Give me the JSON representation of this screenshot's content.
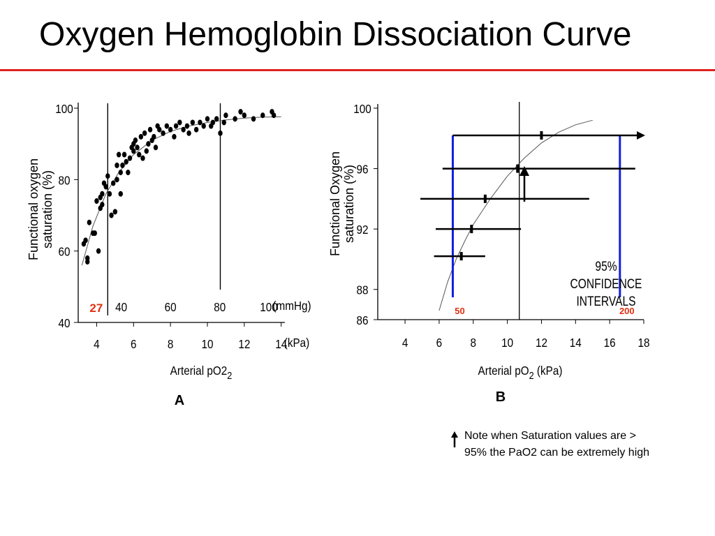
{
  "slide": {
    "title": "Oxygen Hemoglobin Dissociation Curve",
    "accent_color": "#e02020",
    "note": "Note when Saturation values are > 95% the PaO2 can be extremely high",
    "note_icon": "up-arrow-icon"
  },
  "chart_data": [
    {
      "panel_label": "A",
      "type": "scatter",
      "xlabel": "Arterial pO2",
      "xlabel_sub": "2",
      "ylabel": [
        "Functional oxygen",
        "saturation (%)"
      ],
      "x_unit": "(kPa)",
      "x2_unit": "(mmHg)",
      "xlim": [
        3,
        14.2
      ],
      "ylim": [
        40,
        100
      ],
      "x_ticks": [
        4,
        6,
        8,
        10,
        12,
        14
      ],
      "y_ticks": [
        40,
        60,
        80,
        100
      ],
      "x2_ticks": [
        {
          "label": "40",
          "x": 5.33
        },
        {
          "label": "60",
          "x": 8.0
        },
        {
          "label": "80",
          "x": 10.67
        },
        {
          "label": "100",
          "x": 13.33
        }
      ],
      "highlight_tick": {
        "label": "27",
        "x": 3.6,
        "color": "#e03010"
      },
      "vlines": [
        4.6,
        10.7
      ],
      "grid": false,
      "fit_curve": {
        "x": [
          3.2,
          3.8,
          4.5,
          5.2,
          6.0,
          7.0,
          8.0,
          9.0,
          10.0,
          11.0,
          12.0,
          13.0,
          14.0
        ],
        "y": [
          56,
          67,
          76,
          82,
          87,
          91,
          93.5,
          95,
          96,
          96.7,
          97.2,
          97.5,
          97.6
        ]
      },
      "points": [
        [
          3.3,
          62
        ],
        [
          3.4,
          63
        ],
        [
          3.5,
          57
        ],
        [
          3.5,
          58
        ],
        [
          3.6,
          68
        ],
        [
          3.8,
          65
        ],
        [
          3.9,
          65
        ],
        [
          4.0,
          74
        ],
        [
          4.1,
          60
        ],
        [
          4.2,
          75
        ],
        [
          4.2,
          72
        ],
        [
          4.3,
          73
        ],
        [
          4.3,
          76
        ],
        [
          4.4,
          79
        ],
        [
          4.5,
          78
        ],
        [
          4.6,
          81
        ],
        [
          4.7,
          76
        ],
        [
          4.8,
          70
        ],
        [
          4.9,
          79
        ],
        [
          5.0,
          71
        ],
        [
          5.1,
          80
        ],
        [
          5.1,
          84
        ],
        [
          5.2,
          87
        ],
        [
          5.3,
          82
        ],
        [
          5.3,
          76
        ],
        [
          5.4,
          84
        ],
        [
          5.5,
          87
        ],
        [
          5.6,
          85
        ],
        [
          5.7,
          82
        ],
        [
          5.8,
          86
        ],
        [
          5.9,
          89
        ],
        [
          6.0,
          90
        ],
        [
          6.0,
          88
        ],
        [
          6.1,
          91
        ],
        [
          6.2,
          89
        ],
        [
          6.3,
          87
        ],
        [
          6.4,
          92
        ],
        [
          6.5,
          86
        ],
        [
          6.6,
          93
        ],
        [
          6.7,
          88
        ],
        [
          6.8,
          90
        ],
        [
          6.9,
          94
        ],
        [
          7.0,
          91
        ],
        [
          7.1,
          92
        ],
        [
          7.2,
          89
        ],
        [
          7.3,
          95
        ],
        [
          7.4,
          94
        ],
        [
          7.6,
          93
        ],
        [
          7.8,
          95
        ],
        [
          8.0,
          94
        ],
        [
          8.2,
          92
        ],
        [
          8.3,
          95
        ],
        [
          8.5,
          96
        ],
        [
          8.7,
          94
        ],
        [
          8.9,
          95
        ],
        [
          9.0,
          93
        ],
        [
          9.2,
          96
        ],
        [
          9.4,
          94
        ],
        [
          9.6,
          96
        ],
        [
          9.8,
          95
        ],
        [
          10.0,
          97
        ],
        [
          10.2,
          95
        ],
        [
          10.3,
          96
        ],
        [
          10.5,
          97
        ],
        [
          10.7,
          93
        ],
        [
          10.9,
          96
        ],
        [
          11.0,
          98
        ],
        [
          11.5,
          97
        ],
        [
          11.8,
          99
        ],
        [
          12.0,
          98
        ],
        [
          12.5,
          97
        ],
        [
          13.0,
          98
        ],
        [
          13.5,
          99
        ],
        [
          13.6,
          98
        ]
      ]
    },
    {
      "panel_label": "B",
      "type": "line",
      "xlabel": "Arterial pO",
      "xlabel_sub": "2",
      "xlabel_suffix": " (kPa)",
      "ylabel": [
        "Functional Oxygen",
        "saturation (%)"
      ],
      "xlim": [
        2.4,
        18.0
      ],
      "ylim": [
        86,
        100
      ],
      "x_ticks": [
        4,
        6,
        8,
        10,
        12,
        14,
        16,
        18
      ],
      "y_ticks": [
        86,
        88,
        92,
        96,
        100
      ],
      "grid": false,
      "vline": 10.7,
      "curve": {
        "x": [
          6.0,
          6.5,
          7.0,
          7.5,
          8.0,
          9.0,
          10.0,
          11.0,
          12.0,
          13.0,
          14.0,
          15.0
        ],
        "y": [
          86.6,
          88.5,
          90.0,
          91.2,
          92.3,
          94.0,
          95.5,
          96.7,
          97.7,
          98.4,
          98.9,
          99.2
        ]
      },
      "confidence_intervals": [
        {
          "center": 7.3,
          "low": 5.7,
          "high": 8.7,
          "y": 90.2
        },
        {
          "center": 7.9,
          "low": 5.8,
          "high": 10.8,
          "y": 92.0
        },
        {
          "center": 8.7,
          "low": 4.9,
          "high": 14.8,
          "y": 94.0
        },
        {
          "center": 10.6,
          "low": 6.2,
          "high": 17.5,
          "y": 96.0
        },
        {
          "center": 12.0,
          "low": 6.8,
          "high": 18.0,
          "y": 98.2,
          "open_ended": true
        }
      ],
      "blue_lines": [
        {
          "x": 6.8,
          "label": "50"
        },
        {
          "x": 16.6,
          "label": "200"
        }
      ],
      "blue_color": "#1020e0",
      "label_color": "#e03010",
      "annotation": [
        "95%",
        "CONFIDENCE",
        "INTERVALS"
      ]
    }
  ]
}
